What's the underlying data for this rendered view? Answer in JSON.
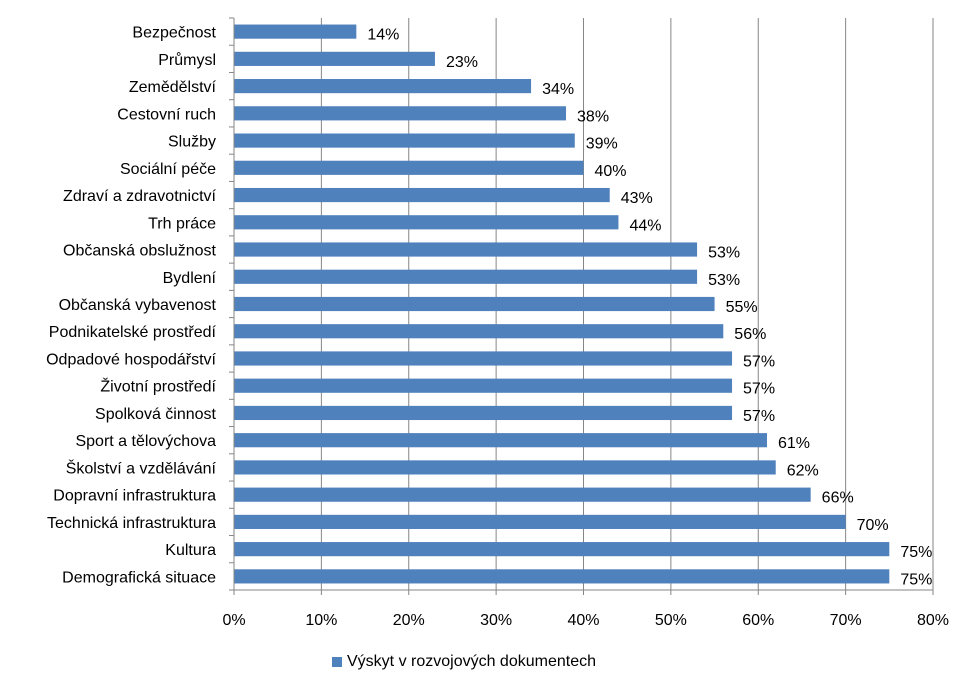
{
  "chart_data": {
    "type": "bar",
    "orientation": "horizontal",
    "categories": [
      "Bezpečnost",
      "Průmysl",
      "Zemědělství",
      "Cestovní ruch",
      "Služby",
      "Sociální péče",
      "Zdraví a zdravotnictví",
      "Trh práce",
      "Občanská obslužnost",
      "Bydlení",
      "Občanská vybavenost",
      "Podnikatelské prostředí",
      "Odpadové hospodářství",
      "Životní prostředí",
      "Spolková činnost",
      "Sport a tělovýchova",
      "Školství a vzdělávání",
      "Dopravní infrastruktura",
      "Technická infrastruktura",
      "Kultura",
      "Demografická situace"
    ],
    "series": [
      {
        "name": "Výskyt v rozvojových dokumentech",
        "values": [
          14,
          23,
          34,
          38,
          39,
          40,
          43,
          44,
          53,
          53,
          55,
          56,
          57,
          57,
          57,
          61,
          62,
          66,
          70,
          75,
          75
        ],
        "data_labels": [
          "14%",
          "23%",
          "34%",
          "38%",
          "39%",
          "40%",
          "43%",
          "44%",
          "53%",
          "53%",
          "55%",
          "56%",
          "57%",
          "57%",
          "57%",
          "61%",
          "62%",
          "66%",
          "70%",
          "75%",
          "75%"
        ],
        "color": "#4f81bd"
      }
    ],
    "xlim": [
      0,
      80
    ],
    "xticks": [
      "0%",
      "10%",
      "20%",
      "30%",
      "40%",
      "50%",
      "60%",
      "70%",
      "80%"
    ],
    "grid": true,
    "legend": "bottom",
    "title": "",
    "xlabel": "",
    "ylabel": ""
  },
  "legend": {
    "label": "Výskyt v rozvojových dokumentech"
  }
}
